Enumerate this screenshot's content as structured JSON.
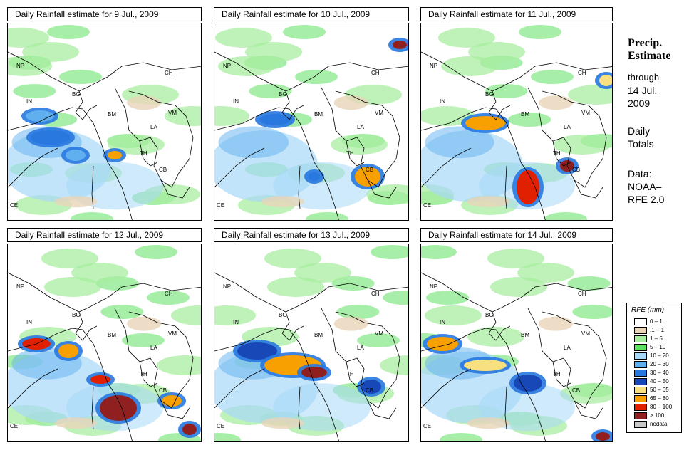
{
  "panels": [
    {
      "title": "Daily Rainfall estimate for  9 Jul., 2009",
      "date": "9 Jul., 2009"
    },
    {
      "title": "Daily Rainfall estimate for  10 Jul., 2009",
      "date": "10 Jul., 2009"
    },
    {
      "title": "Daily Rainfall estimate for  11 Jul., 2009",
      "date": "11 Jul., 2009"
    },
    {
      "title": "Daily Rainfall estimate for  12 Jul., 2009",
      "date": "12 Jul., 2009"
    },
    {
      "title": "Daily Rainfall estimate for  13 Jul., 2009",
      "date": "13 Jul., 2009"
    },
    {
      "title": "Daily Rainfall estimate for  14 Jul., 2009",
      "date": "14 Jul., 2009"
    }
  ],
  "country_labels": [
    "NP",
    "CH",
    "IN",
    "BG",
    "BM",
    "VM",
    "LA",
    "TH",
    "CB",
    "CE"
  ],
  "side": {
    "title_line1": "Precip.",
    "title_line2": "Estimate",
    "through": "through",
    "through_date": "14 Jul.",
    "through_year": "2009",
    "daily1": "Daily",
    "daily2": "Totals",
    "data1": "Data:",
    "data2": "NOAA–",
    "data3": "RFE 2.0"
  },
  "legend": {
    "title": "RFE (mm)",
    "entries": [
      {
        "label": "0 – 1",
        "color": "#ffffff"
      },
      {
        "label": ".1 – 1",
        "color": "#e8d4b8"
      },
      {
        "label": "1 – 5",
        "color": "#a8eea0"
      },
      {
        "label": "5 – 10",
        "color": "#5ee060"
      },
      {
        "label": "10 – 20",
        "color": "#a8d8f8"
      },
      {
        "label": "20 – 30",
        "color": "#60b0f0"
      },
      {
        "label": "30 – 40",
        "color": "#2878e0"
      },
      {
        "label": "40 – 50",
        "color": "#1848b8"
      },
      {
        "label": "50 – 65",
        "color": "#f8e080"
      },
      {
        "label": "65 – 80",
        "color": "#f8a000"
      },
      {
        "label": "80 – 100",
        "color": "#e02000"
      },
      {
        "label": "> 100",
        "color": "#902020"
      },
      {
        "label": "nodata",
        "color": "#c8c8c8"
      }
    ]
  }
}
